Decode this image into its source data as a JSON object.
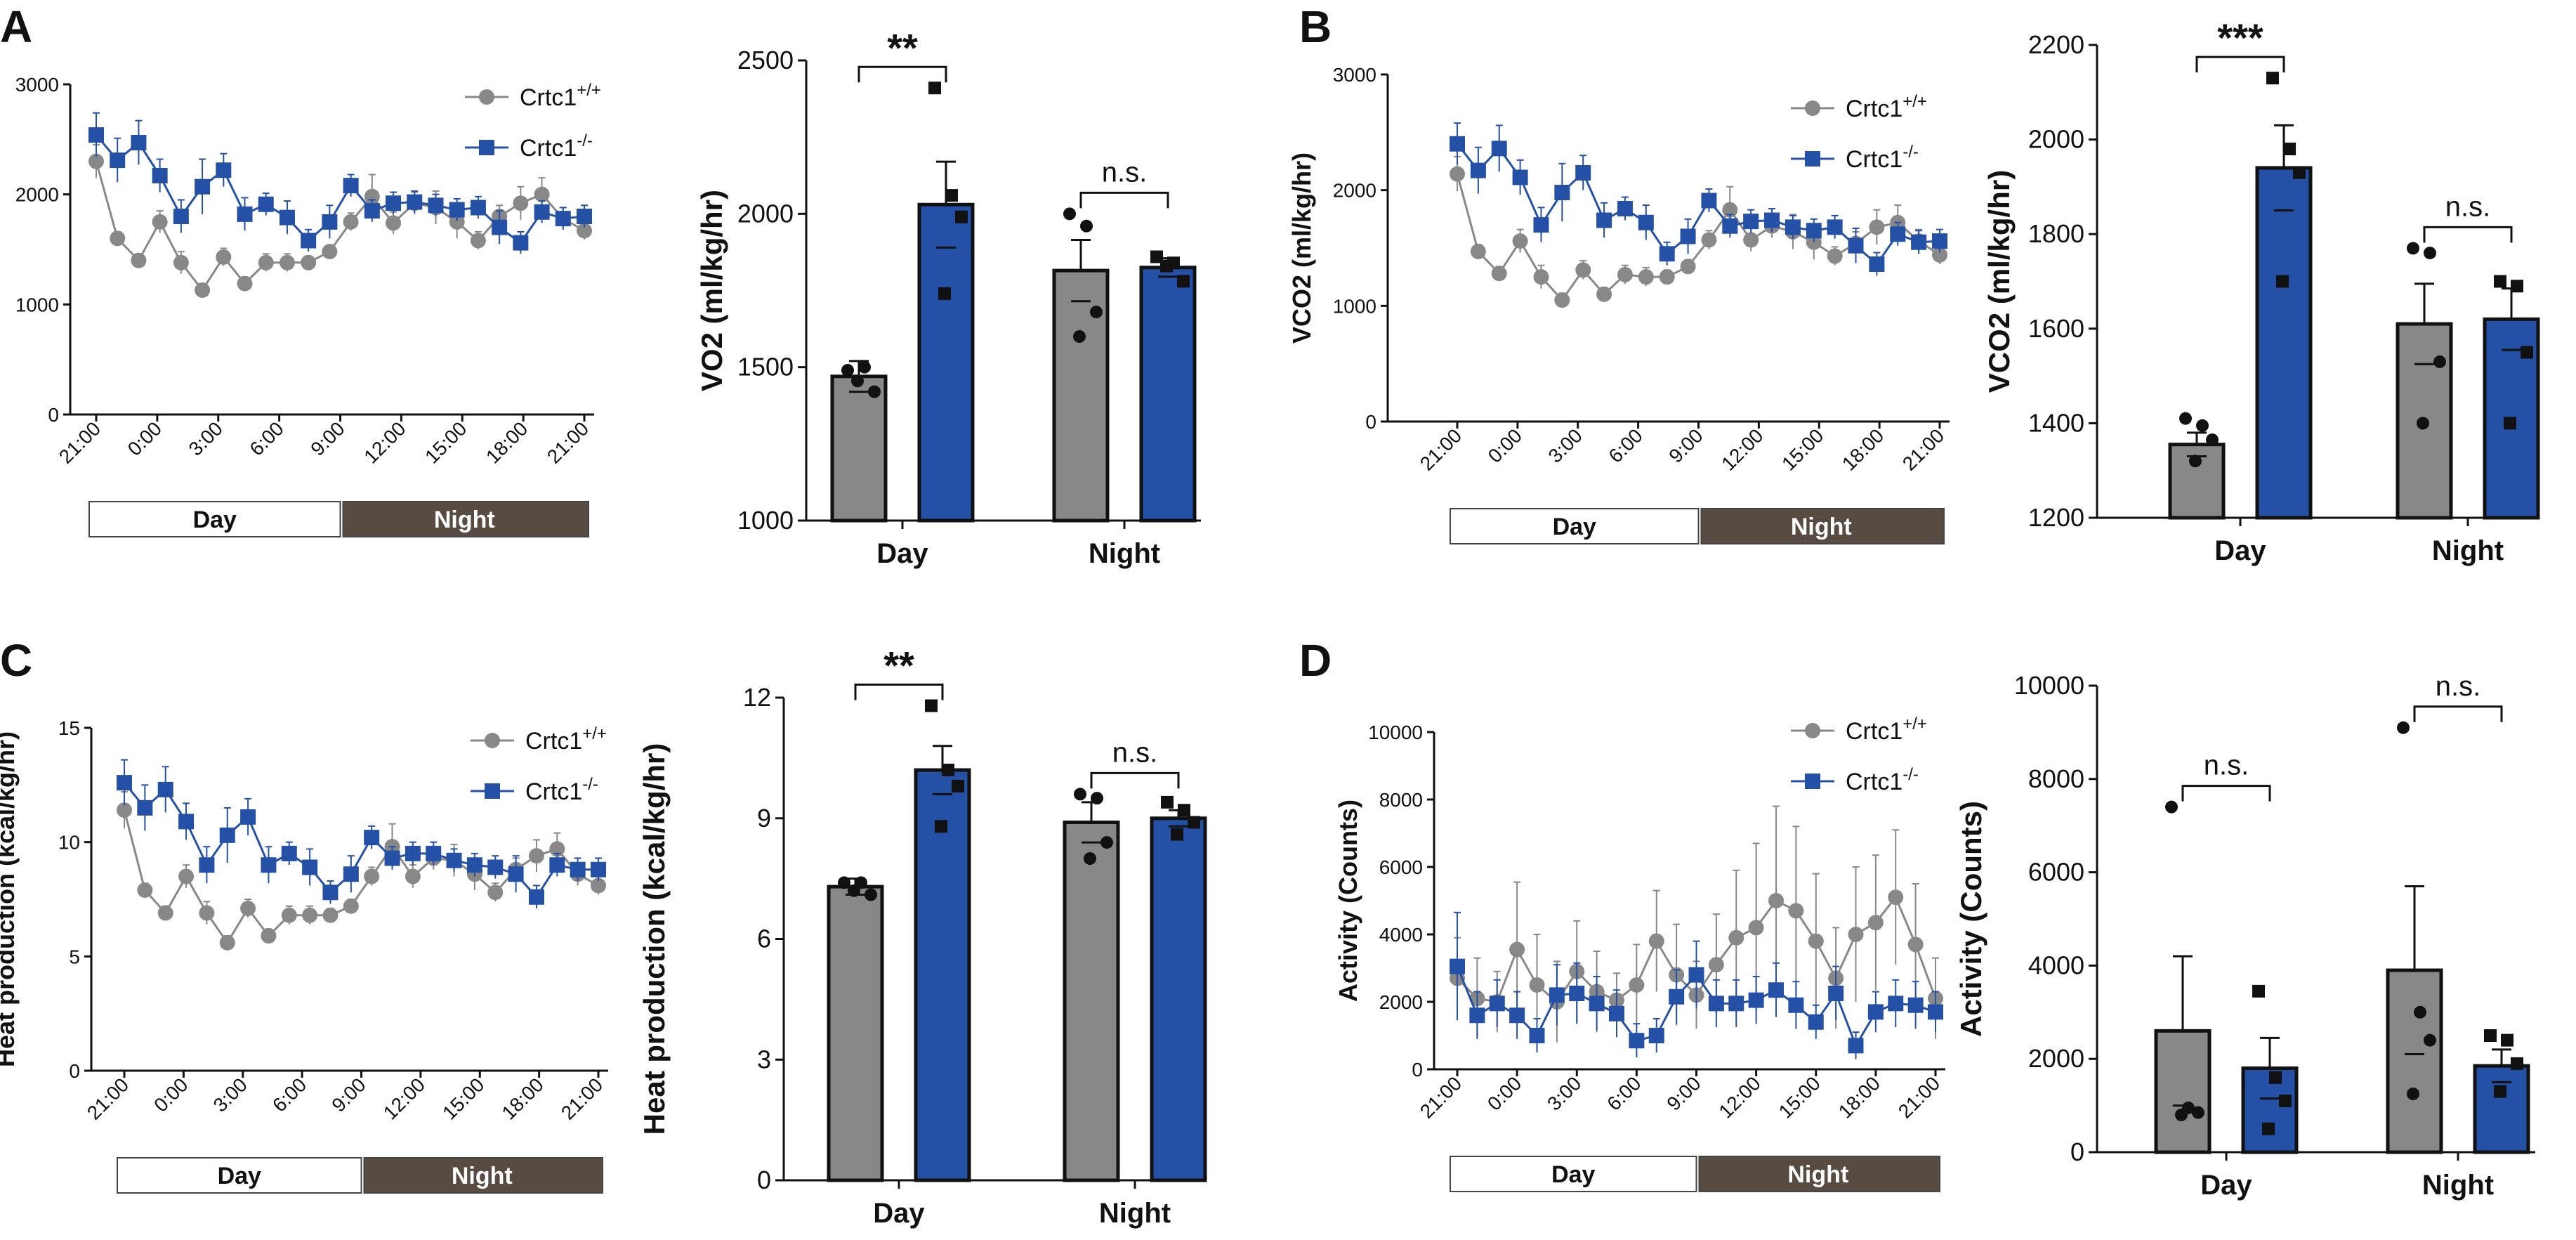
{
  "colors": {
    "wt": "#888888",
    "ko": "#2451a6",
    "night_band": "#584b42",
    "axis": "#111111",
    "point": "#111111"
  },
  "legend": {
    "wt_prefix": "Crtc1",
    "wt_sup": "+/+",
    "ko_prefix": "Crtc1",
    "ko_sup": "-/-"
  },
  "bands": {
    "day": "Day",
    "night": "Night"
  },
  "time_ticks": [
    "21:00",
    "0:00",
    "3:00",
    "6:00",
    "9:00",
    "12:00",
    "15:00",
    "18:00",
    "21:00"
  ],
  "panels": [
    {
      "letter": "A",
      "line": {
        "ylabel": "VO2 (ml/kg/hr)",
        "ylim": [
          0,
          3000
        ],
        "yticks": [
          0,
          1000,
          2000,
          3000
        ],
        "series": [
          {
            "name": "Crtc1+/+",
            "values": [
              2300,
              1600,
              1400,
              1750,
              1380,
              1130,
              1430,
              1190,
              1380,
              1380,
              1380,
              1480,
              1750,
              1980,
              1740,
              1920,
              1880,
              1750,
              1580,
              1800,
              1920,
              2000,
              1780,
              1670
            ],
            "err": [
              150,
              60,
              60,
              100,
              100,
              60,
              80,
              60,
              80,
              80,
              60,
              60,
              80,
              200,
              100,
              100,
              150,
              150,
              80,
              100,
              150,
              150,
              100,
              80
            ]
          },
          {
            "name": "Crtc1-/-",
            "values": [
              2540,
              2310,
              2470,
              2170,
              1800,
              2070,
              2220,
              1820,
              1910,
              1790,
              1580,
              1750,
              2080,
              1850,
              1920,
              1930,
              1900,
              1860,
              1880,
              1700,
              1560,
              1840,
              1780,
              1800
            ],
            "err": [
              200,
              200,
              200,
              150,
              150,
              250,
              150,
              150,
              100,
              150,
              100,
              150,
              100,
              100,
              100,
              100,
              100,
              100,
              100,
              150,
              100,
              100,
              100,
              100
            ]
          }
        ]
      },
      "bar": {
        "ylabel": "VO2 (ml/kg/hr)",
        "ylim": [
          1000,
          2500
        ],
        "yticks": [
          1000,
          1500,
          2000,
          2500
        ],
        "categories": [
          "Day",
          "Night"
        ],
        "series": [
          {
            "name": "Crtc1+/+",
            "values": [
              1470,
              1815
            ],
            "err": [
              50,
              100
            ],
            "points": [
              [
                1490,
                1500,
                1420,
                1455
              ],
              [
                2000,
                1960,
                1680,
                1600
              ]
            ]
          },
          {
            "name": "Crtc1-/-",
            "values": [
              2030,
              1825
            ],
            "err": [
              140,
              30
            ],
            "points": [
              [
                2410,
                2060,
                1990,
                1740
              ],
              [
                1860,
                1840,
                1780,
                1830
              ]
            ]
          }
        ],
        "sig": [
          "**",
          "n.s."
        ]
      }
    },
    {
      "letter": "B",
      "line": {
        "ylabel": "VCO2 (ml/kg/hr)",
        "ylim": [
          0,
          3000
        ],
        "yticks": [
          0,
          1000,
          2000,
          3000
        ],
        "series": [
          {
            "name": "Crtc1+/+",
            "values": [
              2140,
              1470,
              1280,
              1560,
              1250,
              1050,
              1310,
              1100,
              1270,
              1250,
              1250,
              1340,
              1570,
              1830,
              1570,
              1690,
              1640,
              1550,
              1430,
              1540,
              1680,
              1720,
              1560,
              1440
            ],
            "err": [
              150,
              60,
              60,
              100,
              100,
              60,
              80,
              60,
              80,
              80,
              60,
              60,
              80,
              200,
              100,
              100,
              150,
              150,
              80,
              100,
              150,
              150,
              100,
              80
            ]
          },
          {
            "name": "Crtc1-/-",
            "values": [
              2400,
              2170,
              2360,
              2110,
              1700,
              1980,
              2150,
              1740,
              1840,
              1720,
              1450,
              1600,
              1910,
              1690,
              1730,
              1740,
              1680,
              1650,
              1680,
              1520,
              1360,
              1620,
              1550,
              1560
            ],
            "err": [
              180,
              200,
              200,
              150,
              150,
              250,
              150,
              150,
              100,
              150,
              100,
              150,
              100,
              100,
              100,
              100,
              100,
              100,
              100,
              150,
              100,
              100,
              100,
              100
            ]
          }
        ]
      },
      "bar": {
        "ylabel": "VCO2 (ml/kg/hr)",
        "ylim": [
          1200,
          2200
        ],
        "yticks": [
          1200,
          1400,
          1600,
          1800,
          2000,
          2200
        ],
        "categories": [
          "Day",
          "Night"
        ],
        "series": [
          {
            "name": "Crtc1+/+",
            "values": [
              1355,
              1610
            ],
            "err": [
              25,
              85
            ],
            "points": [
              [
                1410,
                1395,
                1365,
                1320
              ],
              [
                1770,
                1760,
                1530,
                1400
              ]
            ]
          },
          {
            "name": "Crtc1-/-",
            "values": [
              1940,
              1620
            ],
            "err": [
              90,
              65
            ],
            "points": [
              [
                2130,
                1980,
                1930,
                1700
              ],
              [
                1700,
                1690,
                1550,
                1400
              ]
            ]
          }
        ],
        "sig": [
          "***",
          "n.s."
        ]
      }
    },
    {
      "letter": "C",
      "line": {
        "ylabel": "Heat production (kcal/kg/hr)",
        "ylim": [
          0,
          15
        ],
        "yticks": [
          0,
          5,
          10,
          15
        ],
        "series": [
          {
            "name": "Crtc1+/+",
            "values": [
              11.4,
              7.9,
              6.9,
              8.5,
              6.9,
              5.6,
              7.1,
              5.9,
              6.8,
              6.8,
              6.8,
              7.2,
              8.5,
              9.8,
              8.5,
              9.3,
              9.2,
              8.6,
              7.8,
              8.8,
              9.4,
              9.7,
              8.6,
              8.1
            ],
            "err": [
              0.8,
              0.3,
              0.3,
              0.5,
              0.5,
              0.3,
              0.4,
              0.3,
              0.4,
              0.4,
              0.3,
              0.3,
              0.4,
              1.0,
              0.5,
              0.5,
              0.7,
              0.7,
              0.4,
              0.5,
              0.7,
              0.7,
              0.5,
              0.4
            ]
          },
          {
            "name": "Crtc1-/-",
            "values": [
              12.6,
              11.5,
              12.3,
              10.9,
              9.0,
              10.3,
              11.1,
              9.0,
              9.5,
              8.9,
              7.8,
              8.6,
              10.2,
              9.3,
              9.5,
              9.5,
              9.2,
              9.0,
              8.9,
              8.6,
              7.6,
              9.0,
              8.8,
              8.8
            ],
            "err": [
              1.0,
              1.0,
              1.0,
              0.8,
              0.8,
              1.2,
              0.8,
              0.8,
              0.5,
              0.8,
              0.5,
              0.8,
              0.5,
              0.5,
              0.5,
              0.5,
              0.5,
              0.5,
              0.5,
              0.8,
              0.5,
              0.5,
              0.5,
              0.5
            ]
          }
        ]
      },
      "bar": {
        "ylabel": "Heat production (kcal/kg/hr)",
        "ylim": [
          0,
          12
        ],
        "yticks": [
          0,
          3,
          6,
          9,
          12
        ],
        "categories": [
          "Day",
          "Night"
        ],
        "series": [
          {
            "name": "Crtc1+/+",
            "values": [
              7.3,
              8.9
            ],
            "err": [
              0.2,
              0.5
            ],
            "points": [
              [
                7.4,
                7.4,
                7.1,
                7.2
              ],
              [
                9.6,
                9.5,
                8.4,
                8.0
              ]
            ]
          },
          {
            "name": "Crtc1-/-",
            "values": [
              10.2,
              9.0
            ],
            "err": [
              0.6,
              0.2
            ],
            "points": [
              [
                11.8,
                10.2,
                9.8,
                8.8
              ],
              [
                9.4,
                9.2,
                8.9,
                8.6
              ]
            ]
          }
        ],
        "sig": [
          "**",
          "n.s."
        ]
      }
    },
    {
      "letter": "D",
      "line": {
        "ylabel": "Activity (Counts)",
        "ylim": [
          0,
          10000
        ],
        "yticks": [
          0,
          2000,
          4000,
          6000,
          8000,
          10000
        ],
        "series": [
          {
            "name": "Crtc1+/+",
            "values": [
              2700,
              2100,
              2000,
              3550,
              2500,
              2000,
              2900,
              2300,
              2050,
              2500,
              3800,
              2800,
              2200,
              3100,
              3900,
              4200,
              5000,
              4700,
              3800,
              2700,
              4000,
              4350,
              5100,
              3700,
              2100
            ],
            "err": [
              1200,
              1200,
              900,
              2000,
              1500,
              1200,
              1500,
              1200,
              800,
              1200,
              1500,
              1500,
              1000,
              1500,
              2000,
              2500,
              2800,
              2500,
              2000,
              1500,
              2000,
              2000,
              2000,
              1800,
              1200
            ]
          },
          {
            "name": "Crtc1-/-",
            "values": [
              3050,
              1600,
              1950,
              1600,
              1000,
              2200,
              2250,
              1950,
              1650,
              850,
              1000,
              2150,
              2800,
              1950,
              1950,
              2050,
              2350,
              1900,
              1400,
              2250,
              700,
              1700,
              1950,
              1900,
              1700
            ],
            "err": [
              1600,
              700,
              700,
              700,
              500,
              900,
              900,
              800,
              700,
              500,
              500,
              800,
              1000,
              700,
              700,
              700,
              800,
              700,
              500,
              800,
              400,
              600,
              700,
              700,
              600
            ]
          }
        ]
      },
      "bar": {
        "ylabel": "Activity (Counts)",
        "ylim": [
          0,
          10000
        ],
        "yticks": [
          0,
          2000,
          4000,
          6000,
          8000,
          10000
        ],
        "categories": [
          "Day",
          "Night"
        ],
        "series": [
          {
            "name": "Crtc1+/+",
            "values": [
              2600,
              3900
            ],
            "err": [
              1600,
              1800
            ],
            "points": [
              [
                7400,
                950,
                850,
                800
              ],
              [
                9100,
                3000,
                2400,
                1250
              ]
            ]
          },
          {
            "name": "Crtc1-/-",
            "values": [
              1800,
              1850
            ],
            "err": [
              650,
              350
            ],
            "points": [
              [
                3450,
                1600,
                1100,
                500
              ],
              [
                2500,
                2400,
                1900,
                1300
              ]
            ]
          }
        ],
        "sig": [
          "n.s.",
          "n.s."
        ]
      }
    }
  ]
}
